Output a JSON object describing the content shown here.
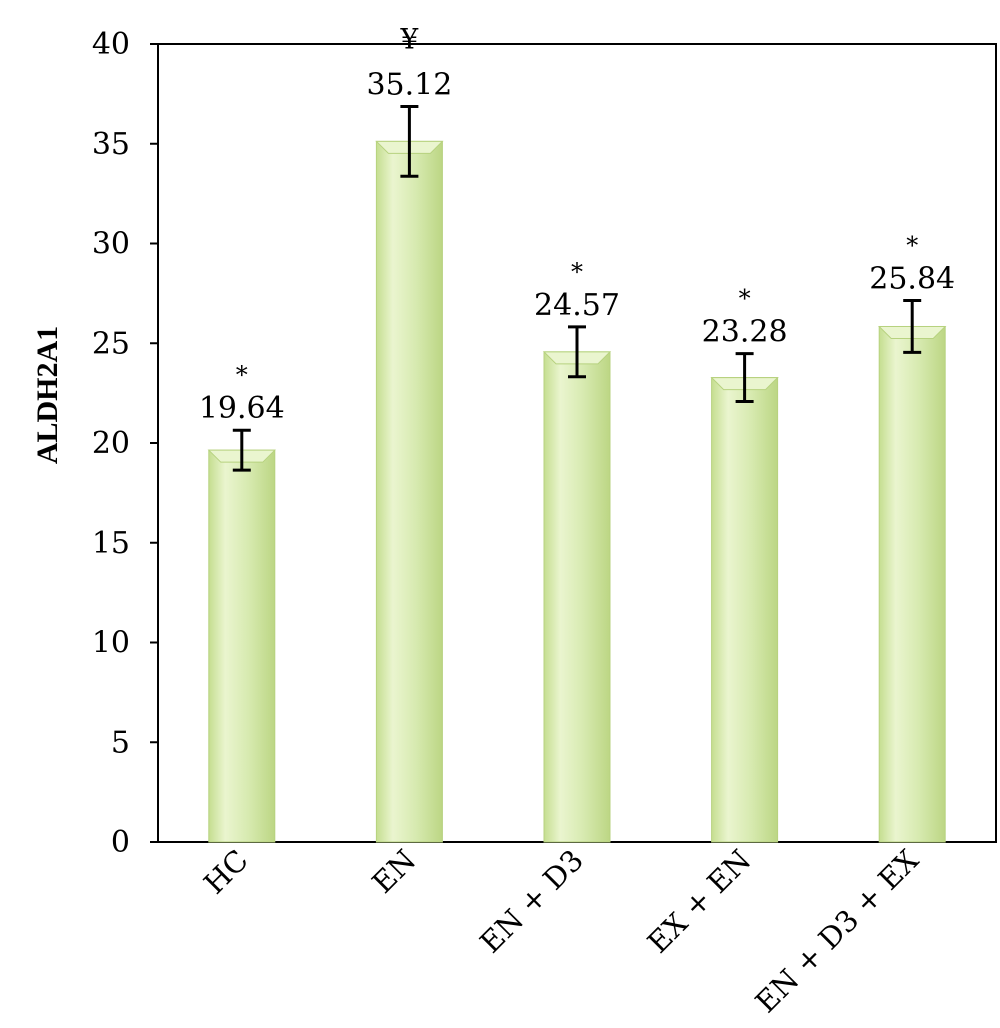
{
  "chart_data": {
    "type": "bar",
    "categories": [
      "HC",
      "EN",
      "EN + D3",
      "EX + EN",
      "EN + D3 + EX"
    ],
    "values": [
      19.64,
      35.12,
      24.57,
      23.28,
      25.84
    ],
    "value_labels": [
      "19.64",
      "35.12",
      "24.57",
      "23.28",
      "25.84"
    ],
    "error_bars": [
      1.0,
      1.75,
      1.25,
      1.2,
      1.3
    ],
    "markers": [
      "*",
      "¥",
      "*",
      "*",
      "*"
    ],
    "title": "",
    "xlabel": "",
    "ylabel": "ALDH2A1",
    "ylim": [
      0,
      40
    ],
    "yticks": [
      0,
      5,
      10,
      15,
      20,
      25,
      30,
      35,
      40
    ],
    "grid": false,
    "legend": "none",
    "colors": {
      "bar_fill": "#d4e8a8",
      "bar_highlight": "#eaf5cf",
      "bar_edge": "#b7d27f",
      "axis": "#000000"
    }
  }
}
